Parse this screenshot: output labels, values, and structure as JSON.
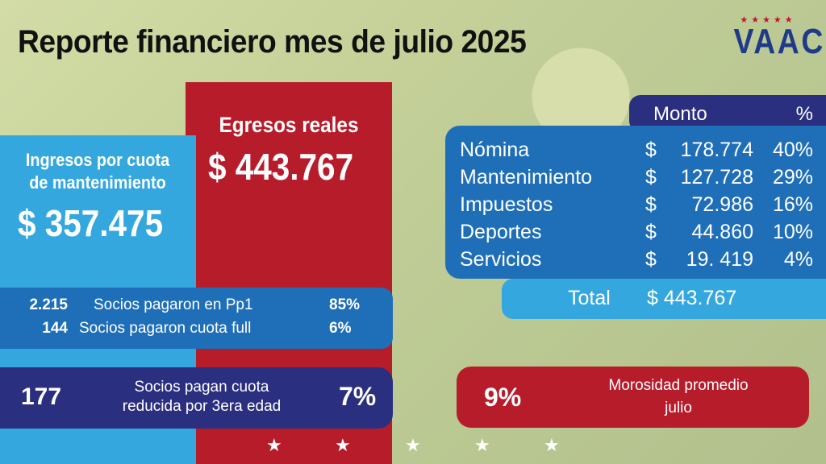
{
  "title": "Reporte financiero mes de julio 2025",
  "logo": {
    "stars": "★★★★★",
    "text": "VAAC"
  },
  "egresos": {
    "label": "Egresos reales",
    "value": "$ 443.767"
  },
  "ingresos": {
    "label_line1": "Ingresos por cuota",
    "label_line2": "de mantenimiento",
    "value": "$ 357.475"
  },
  "socios": [
    {
      "count": "2.215",
      "text": "Socios pagaron en Pp1",
      "pct": "85%"
    },
    {
      "count": "144",
      "text": "Socios pagaron cuota full",
      "pct": "6%"
    }
  ],
  "reducida": {
    "count": "177",
    "text_line1": "Socios pagan cuota",
    "text_line2": "reducida por 3era edad",
    "pct": "7%"
  },
  "morosidad": {
    "pct": "9%",
    "text_line1": "Morosidad promedio",
    "text_line2": "julio"
  },
  "table": {
    "header_monto": "Monto",
    "header_pct": "%",
    "rows": [
      {
        "concept": "Nómina",
        "currency": "$",
        "value": "178.774",
        "pct": "40%"
      },
      {
        "concept": "Mantenimiento",
        "currency": "$",
        "value": "127.728",
        "pct": "29%"
      },
      {
        "concept": "Impuestos",
        "currency": "$",
        "value": "72.986",
        "pct": "16%"
      },
      {
        "concept": "Deportes",
        "currency": "$",
        "value": "44.860",
        "pct": "10%"
      },
      {
        "concept": "Servicios",
        "currency": "$",
        "value": "19. 419",
        "pct": "4%"
      }
    ],
    "total_label": "Total",
    "total_value": "$ 443.767"
  },
  "bottom_stars": [
    "★",
    "★",
    "★",
    "★",
    "★"
  ],
  "colors": {
    "red": "#b71c2b",
    "light_blue": "#35a7df",
    "mid_blue": "#1f6fb8",
    "navy": "#2b2f7f"
  }
}
